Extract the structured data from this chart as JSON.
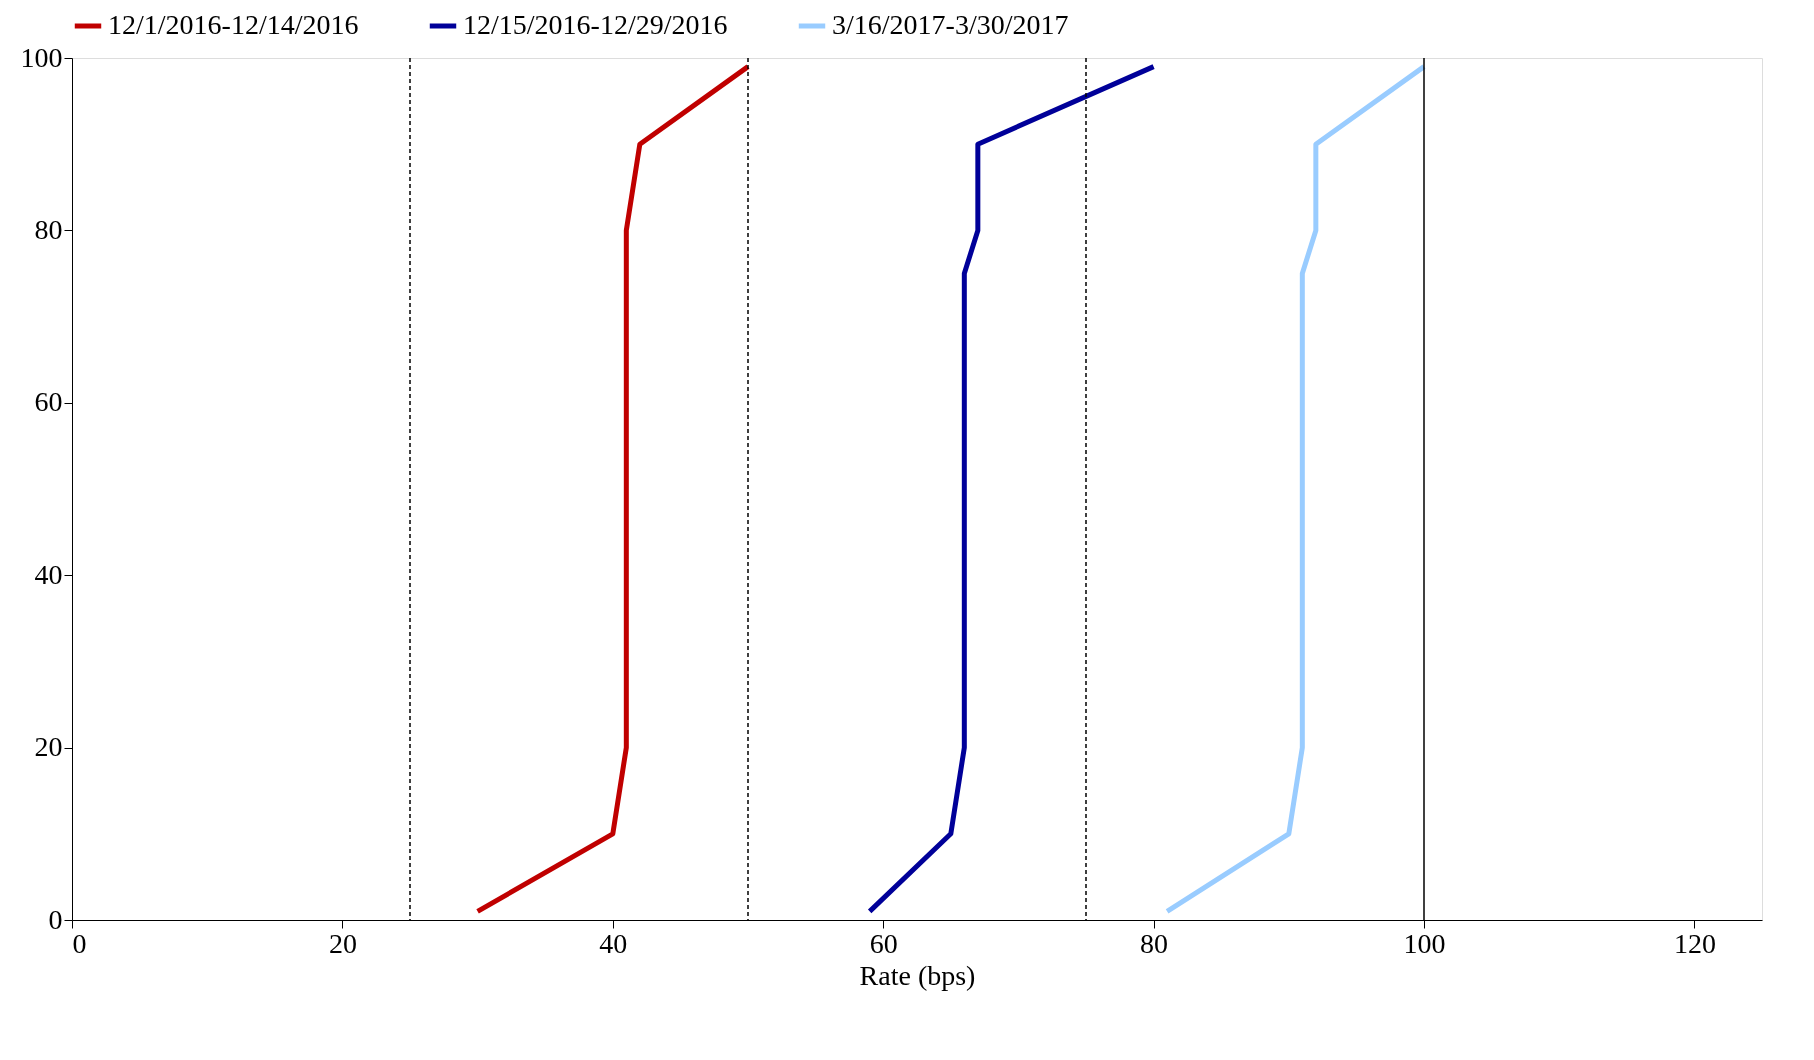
{
  "chart_data": {
    "type": "line",
    "xlabel": "Rate (bps)",
    "series": [
      {
        "name": "12/1/2016-12/14/2016",
        "color": "#c00000",
        "x": [
          30,
          40,
          41,
          41,
          41,
          42,
          50
        ],
        "values": [
          1,
          10,
          20,
          75,
          80,
          90,
          99
        ]
      },
      {
        "name": "12/15/2016-12/29/2016",
        "color": "#000099",
        "x": [
          59,
          65,
          66,
          66,
          67,
          67,
          80
        ],
        "values": [
          1,
          10,
          20,
          75,
          80,
          90,
          99
        ]
      },
      {
        "name": "3/16/2017-3/30/2017",
        "color": "#99ccff",
        "x": [
          81,
          90,
          91,
          91,
          92,
          92,
          100
        ],
        "values": [
          1,
          10,
          20,
          75,
          80,
          90,
          99
        ]
      }
    ],
    "xlim": [
      0,
      125
    ],
    "xticks": [
      0,
      20,
      40,
      60,
      80,
      100,
      120
    ],
    "ylim": [
      0,
      100
    ],
    "yticks": [
      0,
      20,
      40,
      60,
      80,
      100
    ],
    "ref_lines": [
      {
        "axis": "x",
        "value": 25,
        "color": "#000000",
        "line_style": "dashed"
      },
      {
        "axis": "x",
        "value": 50,
        "color": "#000000",
        "line_style": "dashed"
      },
      {
        "axis": "x",
        "value": 75,
        "color": "#000000",
        "line_style": "dashed"
      },
      {
        "axis": "x",
        "value": 100,
        "color": "#000000",
        "line_style": "solid"
      }
    ],
    "grid": false,
    "legend": "top",
    "marker": "none",
    "line_style": "solid"
  }
}
